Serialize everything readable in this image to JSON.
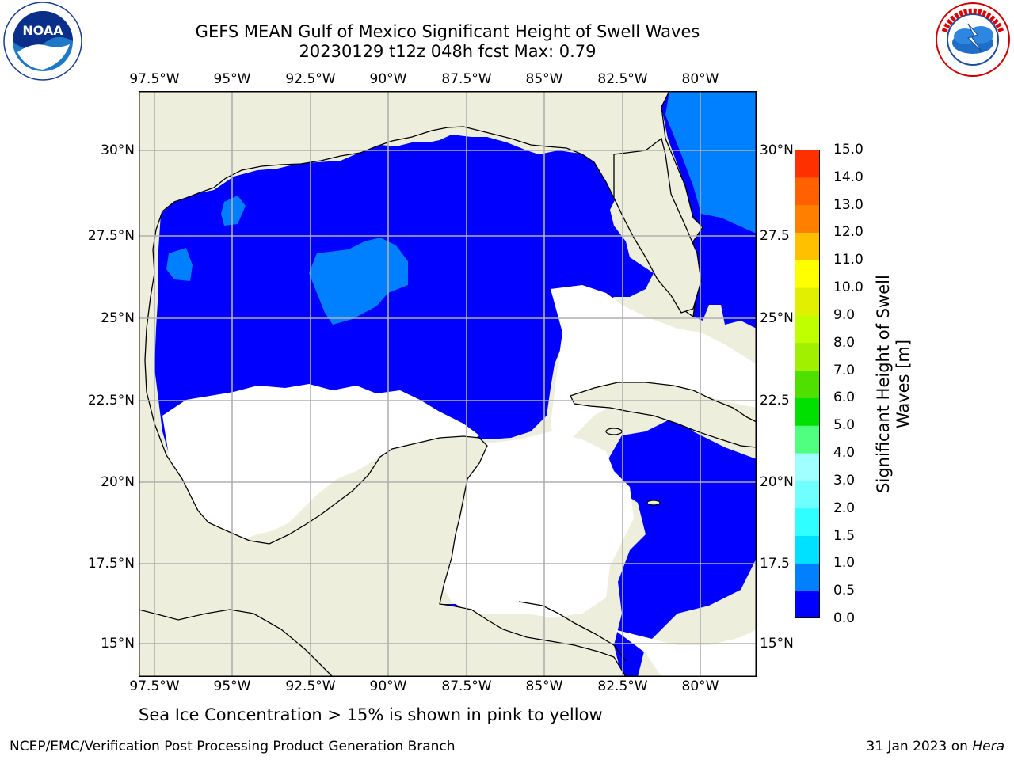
{
  "header": {
    "title_line1": "GEFS MEAN Gulf of Mexico Significant Height of Swell Waves",
    "title_line2": "20230129 t12z 048h fcst   Max: 0.79"
  },
  "logos": {
    "noaa": {
      "text": "NOAA",
      "ring_text": "NATIONAL OCEANIC AND ATMOSPHERIC ADMINISTRATION",
      "icon": "noaa-seagull-logo"
    },
    "nws": {
      "ring_text": "NATIONAL WEATHER SERVICE",
      "icon": "nws-lightning-cloud-logo"
    }
  },
  "map": {
    "lon_labels": [
      "97.5°W",
      "95°W",
      "92.5°W",
      "90°W",
      "87.5°W",
      "85°W",
      "82.5°W",
      "80°W"
    ],
    "lat_labels": [
      "30°N",
      "27.5°N",
      "25°N",
      "22.5°N",
      "20°N",
      "17.5°N",
      "15°N"
    ],
    "lat_labels_right": [
      "30°N",
      "27.5",
      "25°N",
      "22.5",
      "20°N",
      "17.5",
      "15°N"
    ],
    "lon_range": [
      -98,
      -79
    ],
    "lat_range": [
      14,
      32
    ],
    "colors": {
      "land": "#eeeedd",
      "ocean_0_0_5": "#0000ff",
      "ocean_0_5_1_0": "#0080ff",
      "below_threshold": "#ffffff",
      "grid": "#b0b0b0"
    }
  },
  "colorbar": {
    "ticks": [
      "0.0",
      "0.5",
      "1.0",
      "1.5",
      "2.0",
      "3.0",
      "4.0",
      "5.0",
      "6.0",
      "7.0",
      "8.0",
      "9.0",
      "10.0",
      "11.0",
      "12.0",
      "13.0",
      "14.0",
      "15.0"
    ],
    "colors": [
      "#0000ff",
      "#0080ff",
      "#00e0ff",
      "#30ffff",
      "#70ffff",
      "#a0ffff",
      "#50ff80",
      "#00e000",
      "#50e000",
      "#a0f000",
      "#c0ff00",
      "#e0f000",
      "#ffff00",
      "#ffc000",
      "#ff8000",
      "#ff6000",
      "#ff3000",
      "#ff0000"
    ],
    "label": "Significant Height of Swell Waves [m]"
  },
  "subtitle": "Sea Ice Concentration > 15% is shown in pink to yellow",
  "footer": {
    "left": "NCEP/EMC/Verification Post Processing Product Generation Branch",
    "right_date": "31 Jan 2023 on ",
    "right_machine": "Hera"
  }
}
